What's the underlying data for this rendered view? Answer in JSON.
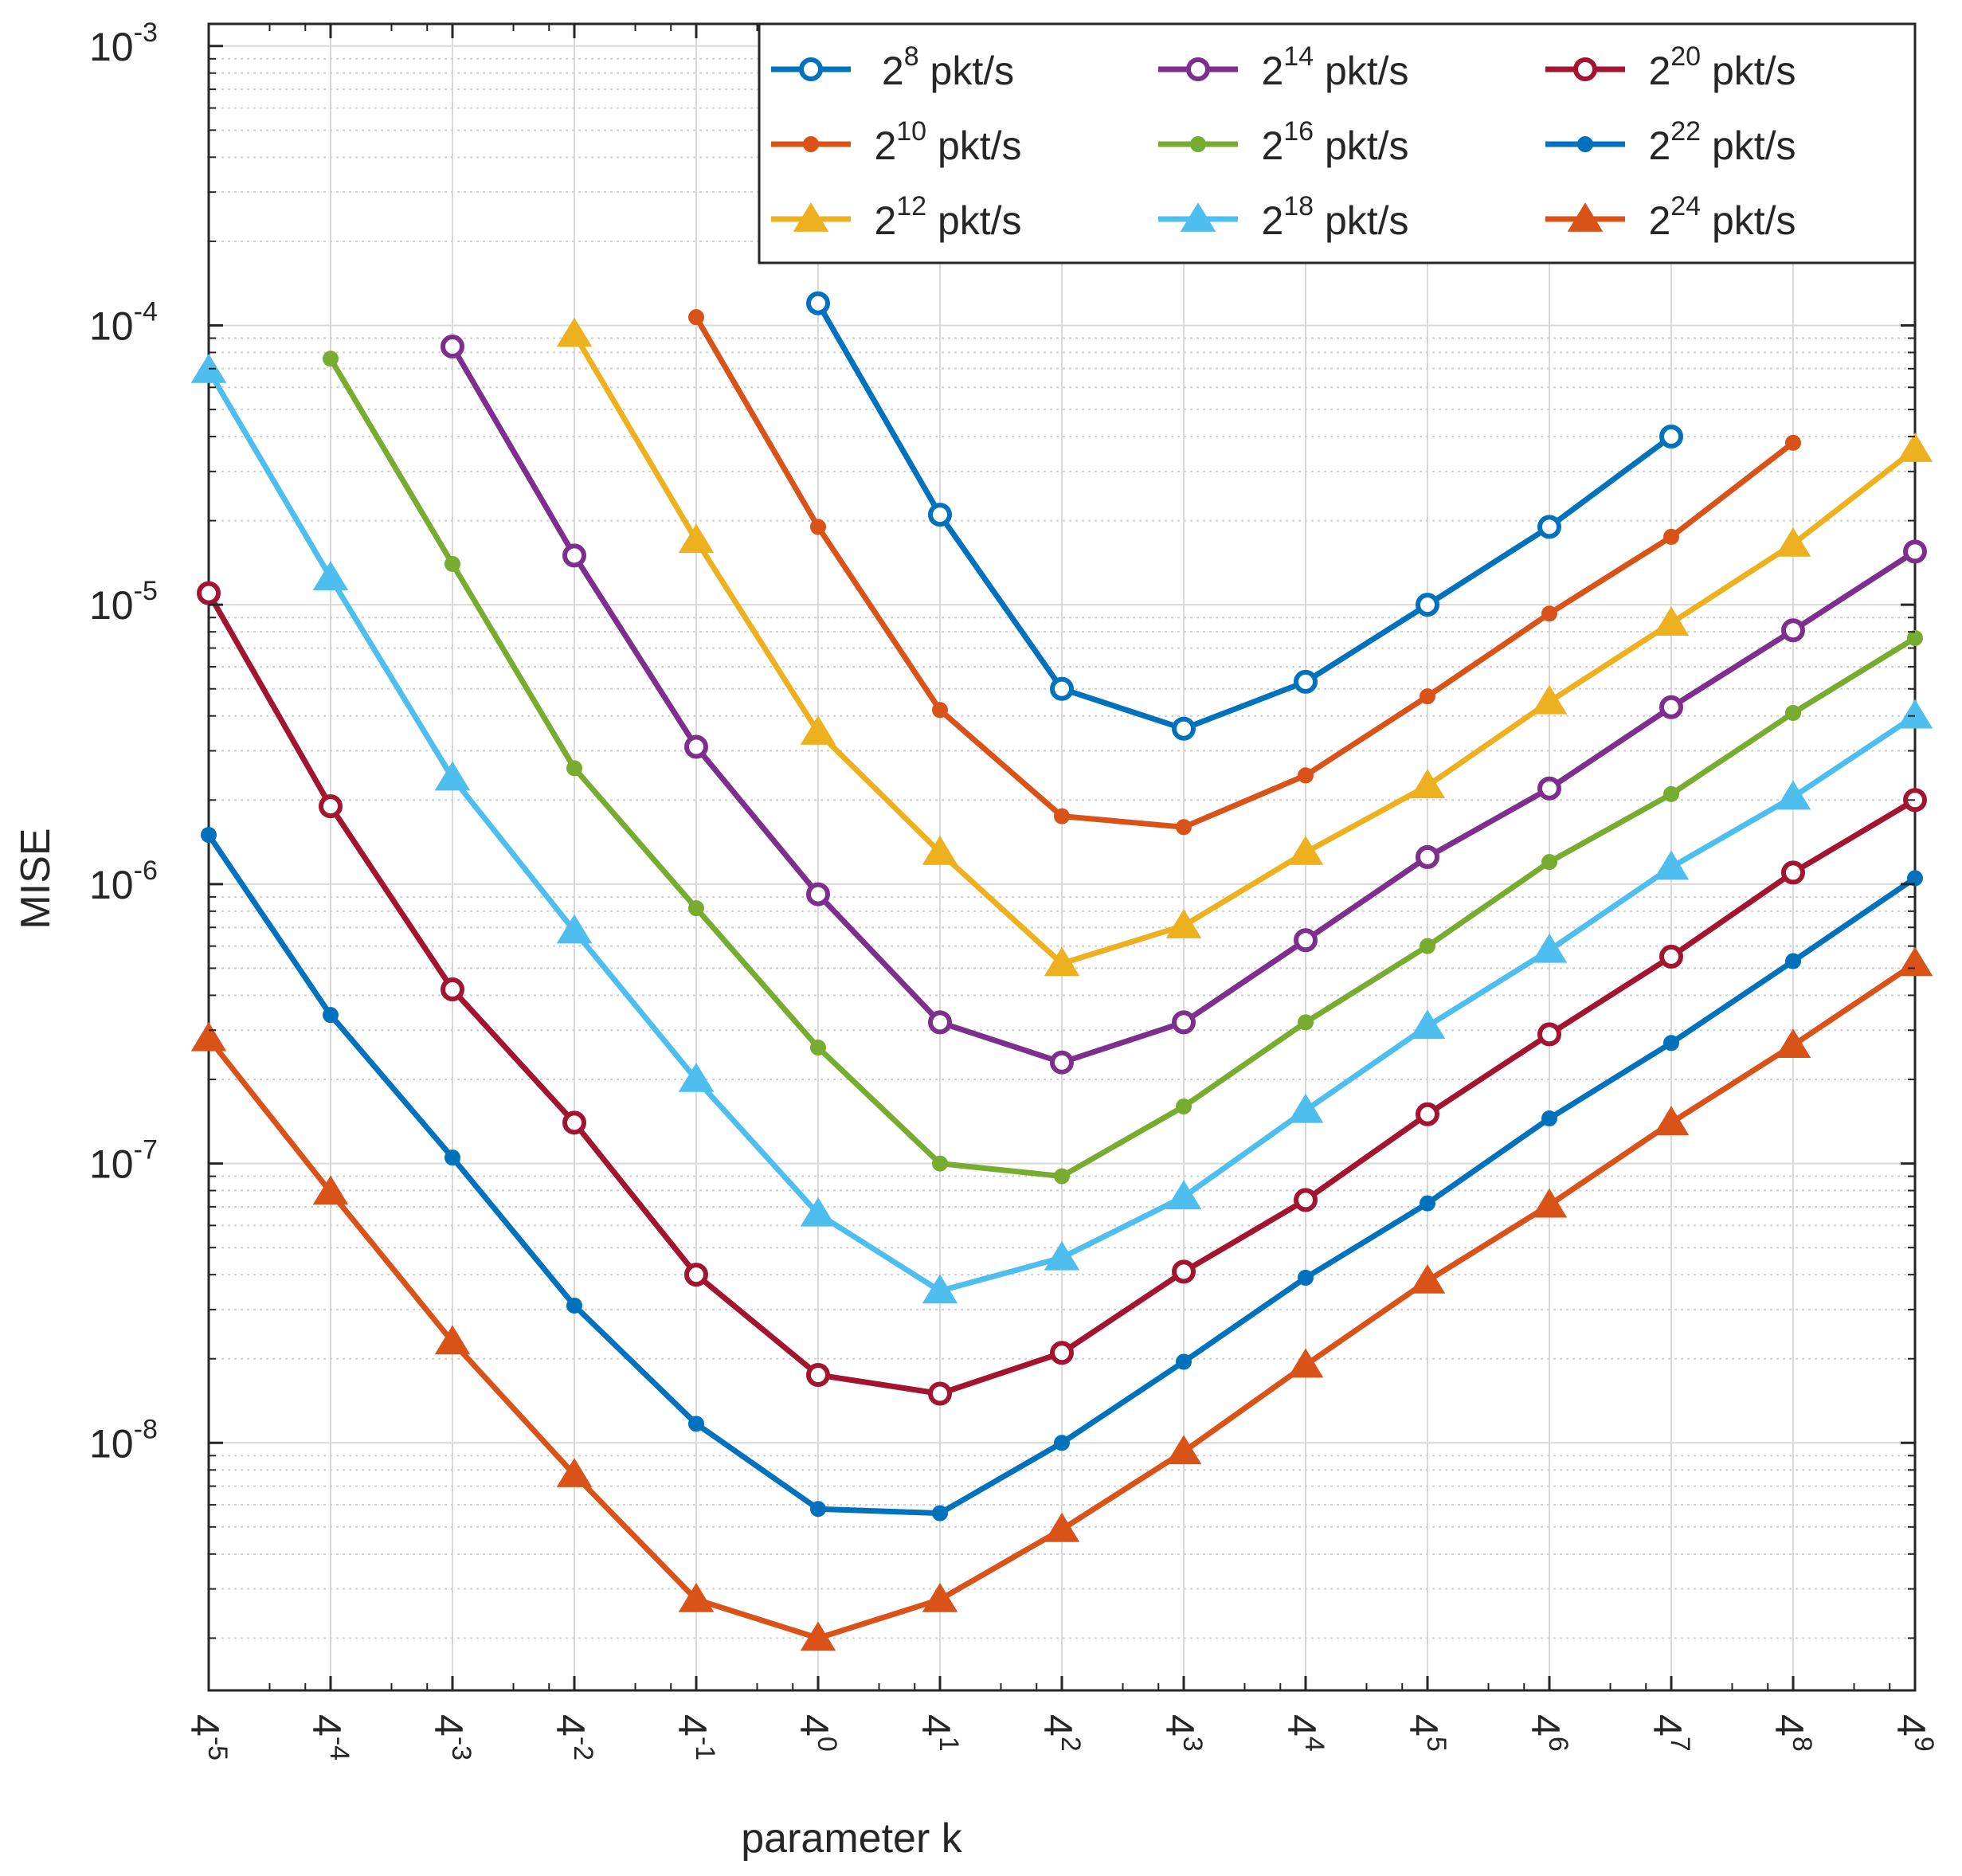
{
  "chart_data": {
    "type": "line",
    "title": "",
    "xlabel": "parameter k",
    "ylabel": "MISE",
    "x_scale": "log4",
    "y_scale": "log10",
    "x_exponents": [
      -5,
      -4,
      -3,
      -2,
      -1,
      0,
      1,
      2,
      3,
      4,
      5,
      6,
      7,
      8,
      9
    ],
    "x_tick_base": "4",
    "y_tick_exponents": [
      -8,
      -7,
      -6,
      -5,
      -4,
      -3
    ],
    "y_tick_base": "10",
    "ylim": [
      1.3e-09,
      0.0012
    ],
    "grid": true,
    "legend_position": "top-right",
    "series": [
      {
        "name": "2^8 pkt/s",
        "base": "2",
        "exp": "8",
        "unit": "pkt/s",
        "color": "#0072BD",
        "marker": "circle",
        "filled": false,
        "x_exp": [
          0,
          1,
          2,
          3,
          4,
          5,
          6,
          7
        ],
        "values": [
          0.00012,
          2.1e-05,
          5e-06,
          3.6e-06,
          5.3e-06,
          1e-05,
          1.9e-05,
          4e-05
        ]
      },
      {
        "name": "2^10 pkt/s",
        "base": "2",
        "exp": "10",
        "unit": "pkt/s",
        "color": "#D95319",
        "marker": "dot",
        "filled": true,
        "x_exp": [
          -1,
          0,
          1,
          2,
          3,
          4,
          5,
          6,
          7,
          8
        ],
        "values": [
          0.000107,
          1.9e-05,
          4.2e-06,
          1.75e-06,
          1.6e-06,
          2.45e-06,
          4.7e-06,
          9.3e-06,
          1.75e-05,
          3.8e-05
        ]
      },
      {
        "name": "2^12 pkt/s",
        "base": "2",
        "exp": "12",
        "unit": "pkt/s",
        "color": "#EDB120",
        "marker": "triangle",
        "filled": true,
        "x_exp": [
          -2,
          -1,
          0,
          1,
          2,
          3,
          4,
          5,
          6,
          7,
          8,
          9
        ],
        "values": [
          9.3e-05,
          1.7e-05,
          3.5e-06,
          1.3e-06,
          5.2e-07,
          7.1e-07,
          1.3e-06,
          2.25e-06,
          4.5e-06,
          8.6e-06,
          1.65e-05,
          3.6e-05
        ]
      },
      {
        "name": "2^14 pkt/s",
        "base": "2",
        "exp": "14",
        "unit": "pkt/s",
        "color": "#7E2F8E",
        "marker": "circle",
        "filled": false,
        "x_exp": [
          -3,
          -2,
          -1,
          0,
          1,
          2,
          3,
          4,
          5,
          6,
          7,
          8,
          9
        ],
        "values": [
          8.4e-05,
          1.5e-05,
          3.1e-06,
          9.2e-07,
          3.2e-07,
          2.3e-07,
          3.2e-07,
          6.3e-07,
          1.25e-06,
          2.2e-06,
          4.3e-06,
          8.1e-06,
          1.55e-05
        ]
      },
      {
        "name": "2^16 pkt/s",
        "base": "2",
        "exp": "16",
        "unit": "pkt/s",
        "color": "#77AC30",
        "marker": "dot",
        "filled": true,
        "x_exp": [
          -4,
          -3,
          -2,
          -1,
          0,
          1,
          2,
          3,
          4,
          5,
          6,
          7,
          8,
          9
        ],
        "values": [
          7.6e-05,
          1.4e-05,
          2.6e-06,
          8.2e-07,
          2.6e-07,
          1e-07,
          9e-08,
          1.6e-07,
          3.2e-07,
          6e-07,
          1.2e-06,
          2.1e-06,
          4.1e-06,
          7.6e-06
        ]
      },
      {
        "name": "2^18 pkt/s",
        "base": "2",
        "exp": "18",
        "unit": "pkt/s",
        "color": "#4DBEEE",
        "marker": "triangle",
        "filled": true,
        "x_exp": [
          -5,
          -4,
          -3,
          -2,
          -1,
          0,
          1,
          2,
          3,
          4,
          5,
          6,
          7,
          8,
          9
        ],
        "values": [
          6.9e-05,
          1.25e-05,
          2.4e-06,
          6.8e-07,
          2e-07,
          6.6e-08,
          3.5e-08,
          4.6e-08,
          7.6e-08,
          1.55e-07,
          3.1e-07,
          5.8e-07,
          1.15e-06,
          2.05e-06,
          4e-06
        ]
      },
      {
        "name": "2^20 pkt/s",
        "base": "2",
        "exp": "20",
        "unit": "pkt/s",
        "color": "#A2142F",
        "marker": "circle",
        "filled": false,
        "x_exp": [
          -5,
          -4,
          -3,
          -2,
          -1,
          0,
          1,
          2,
          3,
          4,
          5,
          6,
          7,
          8,
          9
        ],
        "values": [
          1.1e-05,
          1.9e-06,
          4.2e-07,
          1.4e-07,
          4e-08,
          1.75e-08,
          1.5e-08,
          2.1e-08,
          4.1e-08,
          7.4e-08,
          1.5e-07,
          2.9e-07,
          5.5e-07,
          1.1e-06,
          2e-06
        ]
      },
      {
        "name": "2^22 pkt/s",
        "base": "2",
        "exp": "22",
        "unit": "pkt/s",
        "color": "#0072BD",
        "marker": "dot",
        "filled": true,
        "x_exp": [
          -5,
          -4,
          -3,
          -2,
          -1,
          0,
          1,
          2,
          3,
          4,
          5,
          6,
          7,
          8,
          9
        ],
        "values": [
          1.5e-06,
          3.4e-07,
          1.05e-07,
          3.1e-08,
          1.17e-08,
          5.8e-09,
          5.6e-09,
          1e-08,
          1.95e-08,
          3.9e-08,
          7.2e-08,
          1.45e-07,
          2.7e-07,
          5.3e-07,
          1.05e-06
        ]
      },
      {
        "name": "2^24 pkt/s",
        "base": "2",
        "exp": "24",
        "unit": "pkt/s",
        "color": "#D95319",
        "marker": "triangle",
        "filled": true,
        "x_exp": [
          -5,
          -4,
          -3,
          -2,
          -1,
          0,
          1,
          2,
          3,
          4,
          5,
          6,
          7,
          8,
          9
        ],
        "values": [
          2.8e-07,
          7.9e-08,
          2.3e-08,
          7.7e-09,
          2.75e-09,
          2e-09,
          2.75e-09,
          4.9e-09,
          9.3e-09,
          1.9e-08,
          3.8e-08,
          7.1e-08,
          1.4e-07,
          2.65e-07,
          5.2e-07
        ]
      }
    ]
  }
}
